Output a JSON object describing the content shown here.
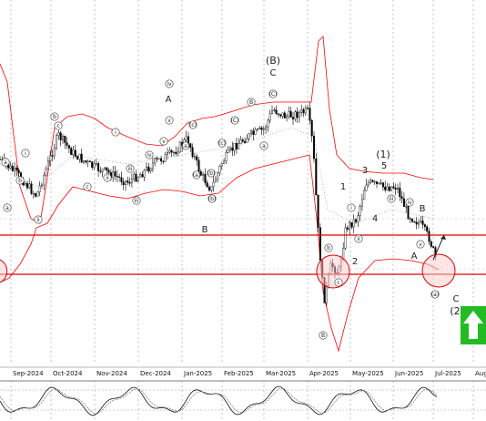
{
  "chart_data": {
    "type": "candlestick",
    "xaxis_labels": [
      "Sep-2024",
      "Oct-2024",
      "Nov-2024",
      "Dec-2024",
      "Jan-2025",
      "Feb-2025",
      "Mar-2025",
      "Apr-2025",
      "May-2025",
      "Jun-2025",
      "Jul-2025",
      "Aug"
    ],
    "grid": true,
    "horizontal_levels": [
      "upper-red-line",
      "lower-red-line"
    ],
    "indicators": [
      "bollinger-bands",
      "oscillator-subpanel"
    ],
    "signal": "up-arrow",
    "colors": {
      "bands": "#ff0000",
      "levels": "#e00000",
      "signal": "#22bb22",
      "candles": "#000000",
      "circle_fill": "#ffcccc"
    },
    "wave_labels": {
      "plain": [
        "A",
        "C",
        "B",
        "1",
        "2",
        "3",
        "4",
        "5",
        "(1)",
        "(B)",
        "A",
        "B",
        "C",
        "(2"
      ],
      "circled_samples": [
        "a",
        "b",
        "c",
        "i",
        "ii",
        "iii",
        "iv",
        "v",
        "(a)",
        "(b)",
        "(c)",
        "(C)",
        "B"
      ]
    }
  }
}
